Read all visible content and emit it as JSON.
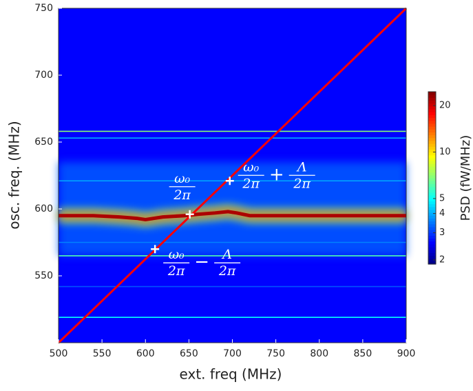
{
  "chart_data": {
    "type": "heatmap",
    "xlabel": "ext. freq (MHz)",
    "ylabel": "osc. freq. (MHz)",
    "xlim": [
      500,
      900
    ],
    "ylim": [
      500,
      750
    ],
    "xticks": [
      500,
      550,
      600,
      650,
      700,
      750,
      800,
      850,
      900
    ],
    "yticks": [
      550,
      600,
      650,
      700,
      750
    ],
    "background": 2.6,
    "regions": [
      {
        "ylim": [
          565,
          635
        ],
        "value": 3.3
      }
    ],
    "horizontal_lines": [
      {
        "y": 658,
        "value": 7
      },
      {
        "y": 653,
        "value": 4
      },
      {
        "y": 621,
        "value": 4
      },
      {
        "y": 575,
        "value": 3.6
      },
      {
        "y": 565,
        "value": 6
      },
      {
        "y": 542,
        "value": 3.2
      },
      {
        "y": 519,
        "value": 5
      }
    ],
    "band": {
      "x": [
        500,
        540,
        570,
        590,
        600,
        620,
        645,
        660,
        680,
        695,
        705,
        720,
        760,
        900
      ],
      "y": [
        595,
        595,
        594,
        593,
        592,
        594,
        595,
        596,
        597,
        598,
        597,
        595,
        595,
        595
      ],
      "value": 22
    },
    "diagonal": {
      "x": [
        500,
        900
      ],
      "y": [
        500,
        750
      ],
      "value": 18
    },
    "markers": {
      "x": [
        611,
        651,
        697
      ],
      "y": [
        570,
        596,
        621
      ]
    },
    "annotations": [
      [
        "ω₀",
        "2π",
        "−",
        "Λ",
        "2π"
      ],
      [
        "ω₀",
        "2π"
      ],
      [
        "ω₀",
        "2π",
        "+",
        "Λ",
        "2π"
      ]
    ],
    "colorbar": {
      "label": "PSD (fW/MHz)",
      "clim": [
        1.88,
        24.6
      ],
      "log": true,
      "colormap": "jet",
      "ticks": [
        2,
        3,
        4,
        5,
        10,
        20
      ]
    }
  }
}
